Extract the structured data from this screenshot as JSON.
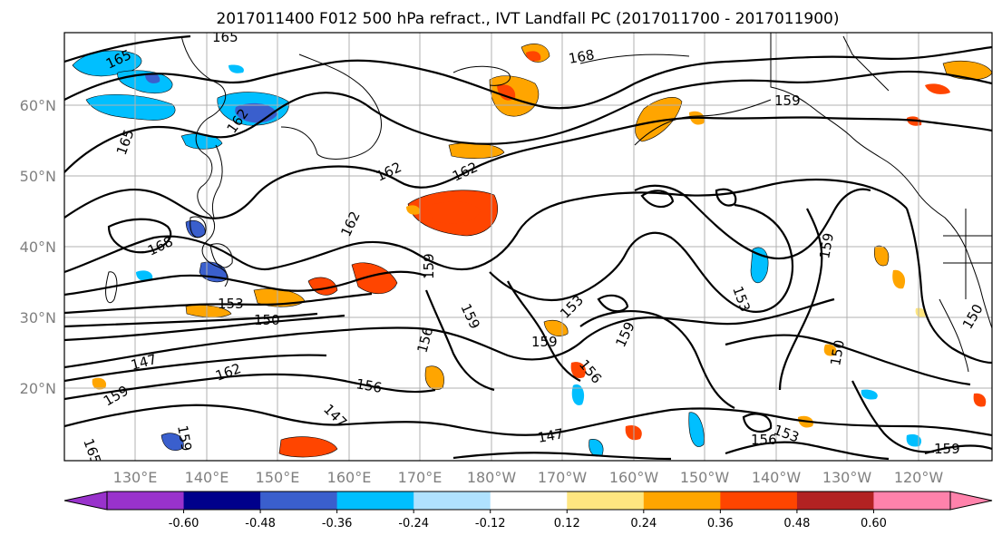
{
  "title": "2017011400 F012 500 hPa refract., IVT Landfall PC (2017011700 - 2017011900)",
  "map": {
    "lat_labels": [
      "60°N",
      "50°N",
      "40°N",
      "30°N",
      "20°N"
    ],
    "lon_labels": [
      "130°E",
      "140°E",
      "150°E",
      "160°E",
      "170°E",
      "180°W",
      "170°W",
      "160°W",
      "150°W",
      "140°W",
      "130°W",
      "120°W"
    ],
    "contour_labels": [
      "165",
      "165",
      "165",
      "168",
      "162",
      "162",
      "162",
      "162",
      "168",
      "159",
      "159",
      "159",
      "153",
      "150",
      "147",
      "162",
      "156",
      "159",
      "147",
      "159",
      "156",
      "153",
      "156",
      "159",
      "159",
      "153",
      "147",
      "156",
      "153",
      "159",
      "150",
      "150",
      "159",
      "165"
    ]
  },
  "colorbar": {
    "ticks": [
      "-0.60",
      "-0.48",
      "-0.36",
      "-0.24",
      "-0.12",
      "0.12",
      "0.24",
      "0.36",
      "0.48",
      "0.60"
    ],
    "colors": [
      "#9932cc",
      "#00008b",
      "#3a5fcd",
      "#00bfff",
      "#b0e2ff",
      "#ffffff",
      "#ffe680",
      "#ffa500",
      "#ff4500",
      "#b22222",
      "#ff82ab"
    ]
  }
}
